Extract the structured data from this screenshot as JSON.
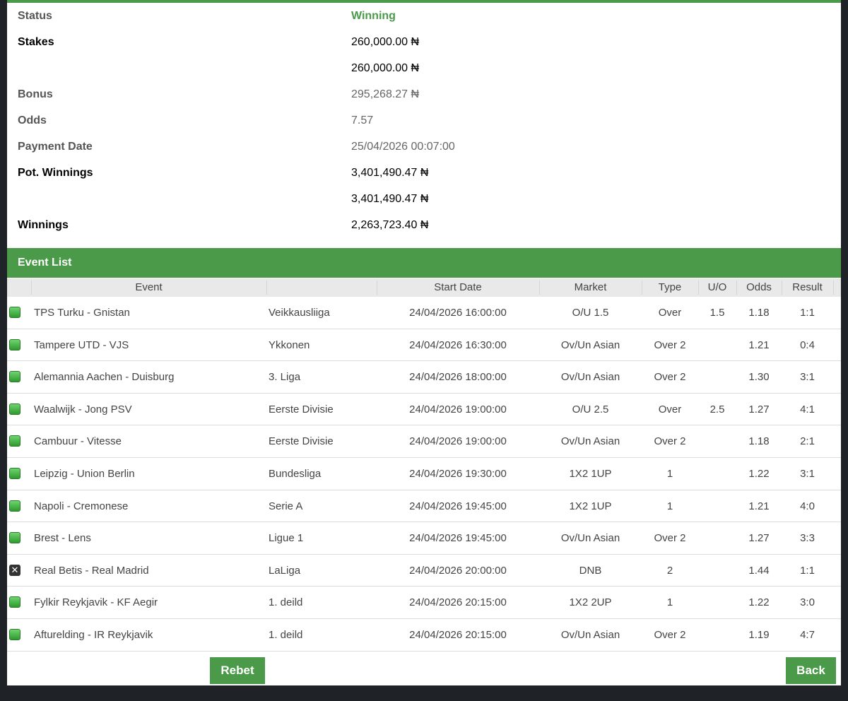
{
  "summary": {
    "status_label": "Status",
    "status_value": "Winning",
    "stakes_label": "Stakes",
    "stakes_value": "260,000.00 ₦",
    "stakes_value2": "260,000.00 ₦",
    "bonus_label": "Bonus",
    "bonus_value": "295,268.27 ₦",
    "odds_label": "Odds",
    "odds_value": "7.57",
    "payment_label": "Payment Date",
    "payment_value": "25/04/2026 00:07:00",
    "pot_label": "Pot. Winnings",
    "pot_value": "3,401,490.47 ₦",
    "pot_value2": "3,401,490.47 ₦",
    "winnings_label": "Winnings",
    "winnings_value": "2,263,723.40 ₦"
  },
  "event_list": {
    "title": "Event List",
    "columns": {
      "event": "Event",
      "start_date": "Start Date",
      "market": "Market",
      "type": "Type",
      "uo": "U/O",
      "odds": "Odds",
      "result": "Result"
    },
    "rows": [
      {
        "status": "won",
        "event": "TPS Turku - Gnistan",
        "league": "Veikkausliiga",
        "start": "24/04/2026 16:00:00",
        "market": "O/U 1.5",
        "type": "Over",
        "uo": "1.5",
        "odds": "1.18",
        "result": "1:1"
      },
      {
        "status": "won",
        "event": "Tampere UTD - VJS",
        "league": "Ykkonen",
        "start": "24/04/2026 16:30:00",
        "market": "Ov/Un Asian",
        "type": "Over 2",
        "uo": "",
        "odds": "1.21",
        "result": "0:4"
      },
      {
        "status": "won",
        "event": "Alemannia Aachen - Duisburg",
        "league": "3. Liga",
        "start": "24/04/2026 18:00:00",
        "market": "Ov/Un Asian",
        "type": "Over 2",
        "uo": "",
        "odds": "1.30",
        "result": "3:1"
      },
      {
        "status": "won",
        "event": "Waalwijk - Jong PSV",
        "league": "Eerste Divisie",
        "start": "24/04/2026 19:00:00",
        "market": "O/U 2.5",
        "type": "Over",
        "uo": "2.5",
        "odds": "1.27",
        "result": "4:1"
      },
      {
        "status": "won",
        "event": "Cambuur - Vitesse",
        "league": "Eerste Divisie",
        "start": "24/04/2026 19:00:00",
        "market": "Ov/Un Asian",
        "type": "Over 2",
        "uo": "",
        "odds": "1.18",
        "result": "2:1"
      },
      {
        "status": "won",
        "event": "Leipzig - Union Berlin",
        "league": "Bundesliga",
        "start": "24/04/2026 19:30:00",
        "market": "1X2 1UP",
        "type": "1",
        "uo": "",
        "odds": "1.22",
        "result": "3:1"
      },
      {
        "status": "won",
        "event": "Napoli - Cremonese",
        "league": "Serie A",
        "start": "24/04/2026 19:45:00",
        "market": "1X2 1UP",
        "type": "1",
        "uo": "",
        "odds": "1.21",
        "result": "4:0"
      },
      {
        "status": "won",
        "event": "Brest - Lens",
        "league": "Ligue 1",
        "start": "24/04/2026 19:45:00",
        "market": "Ov/Un Asian",
        "type": "Over 2",
        "uo": "",
        "odds": "1.27",
        "result": "3:3"
      },
      {
        "status": "lost",
        "event": "Real Betis - Real Madrid",
        "league": "LaLiga",
        "start": "24/04/2026 20:00:00",
        "market": "DNB",
        "type": "2",
        "uo": "",
        "odds": "1.44",
        "result": "1:1"
      },
      {
        "status": "won",
        "event": "Fylkir Reykjavik - KF Aegir",
        "league": "1. deild",
        "start": "24/04/2026 20:15:00",
        "market": "1X2 2UP",
        "type": "1",
        "uo": "",
        "odds": "1.22",
        "result": "3:0"
      },
      {
        "status": "won",
        "event": "Afturelding - IR Reykjavik",
        "league": "1. deild",
        "start": "24/04/2026 20:15:00",
        "market": "Ov/Un Asian",
        "type": "Over 2",
        "uo": "",
        "odds": "1.19",
        "result": "4:7"
      }
    ]
  },
  "buttons": {
    "rebet": "Rebet",
    "back": "Back"
  },
  "colors": {
    "accent": "#4a9a4a"
  }
}
